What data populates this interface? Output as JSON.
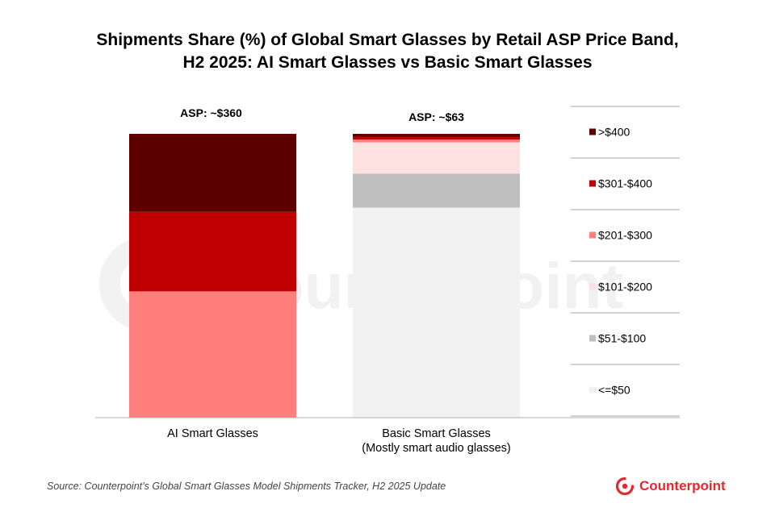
{
  "chart_data": {
    "type": "bar",
    "stacked": true,
    "title_line1": "Shipments Share (%) of Global Smart Glasses by Retail ASP Price Band,",
    "title_line2": "H2 2025: AI Smart Glasses vs Basic Smart Glasses",
    "categories": [
      "AI Smart Glasses",
      "Basic Smart Glasses"
    ],
    "category_sublabels": [
      "",
      "(Mostly smart audio glasses)"
    ],
    "bar_annotations": [
      "ASP: ~$360",
      "ASP: ~$63"
    ],
    "ylim": [
      0,
      100
    ],
    "legend_position": "right",
    "series": [
      {
        "name": "<=$50",
        "color": "#f2f2f2",
        "values": [
          0,
          74.0
        ]
      },
      {
        "name": "$51-$100",
        "color": "#bfbfbf",
        "values": [
          0,
          12.0
        ]
      },
      {
        "name": "$101-$200",
        "color": "#fde0e0",
        "values": [
          0,
          11.0
        ]
      },
      {
        "name": "$201-$300",
        "color": "#ff7f7f",
        "values": [
          44.5,
          1.0
        ]
      },
      {
        "name": "$301-$400",
        "color": "#c00000",
        "values": [
          28.0,
          1.0
        ]
      },
      {
        "name": ">$400",
        "color": "#5c0000",
        "values": [
          27.5,
          1.0
        ]
      }
    ]
  },
  "source": "Source: Counterpoint’s Global Smart Glasses Model Shipments Tracker, H2 2025 Update",
  "watermark": "Counterpoint",
  "logo": {
    "text": "Counterpoint",
    "color": "#e8262f"
  }
}
